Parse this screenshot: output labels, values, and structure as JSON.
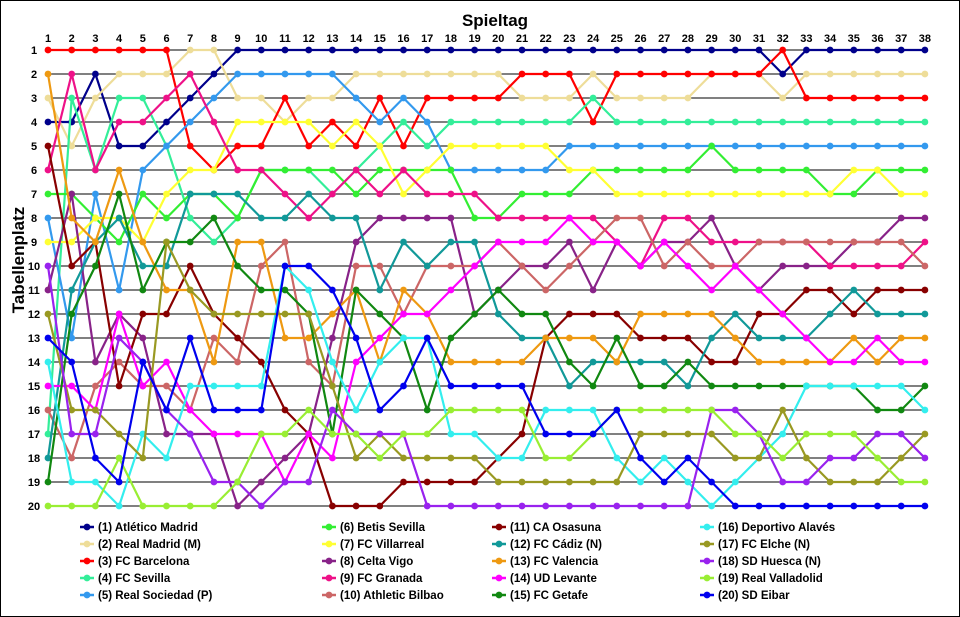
{
  "chart_data": {
    "type": "line",
    "title": "Spieltag",
    "xlabel": "Spieltag",
    "ylabel": "Tabellenplatz",
    "x": [
      1,
      2,
      3,
      4,
      5,
      6,
      7,
      8,
      9,
      10,
      11,
      12,
      13,
      14,
      15,
      16,
      17,
      18,
      19,
      20,
      21,
      22,
      23,
      24,
      25,
      26,
      27,
      28,
      29,
      30,
      31,
      32,
      33,
      34,
      35,
      36,
      37,
      38
    ],
    "ylim": [
      1,
      20
    ],
    "y_inverted": true,
    "grid": "horizontal",
    "legend_position": "bottom",
    "series": [
      {
        "name": "(1) Atlético Madrid",
        "color": "#00008b",
        "values": [
          4,
          4,
          2,
          5,
          5,
          4,
          3,
          2,
          1,
          1,
          1,
          1,
          1,
          1,
          1,
          1,
          1,
          1,
          1,
          1,
          1,
          1,
          1,
          1,
          1,
          1,
          1,
          1,
          1,
          1,
          1,
          2,
          1,
          1,
          1,
          1,
          1,
          1
        ]
      },
      {
        "name": "(2) Real Madrid (M)",
        "color": "#eedd99",
        "values": [
          3,
          5,
          3,
          2,
          2,
          2,
          1,
          1,
          3,
          3,
          4,
          3,
          3,
          2,
          2,
          2,
          2,
          2,
          2,
          2,
          3,
          3,
          3,
          2,
          3,
          3,
          3,
          3,
          2,
          2,
          2,
          3,
          2,
          2,
          2,
          2,
          2,
          2
        ]
      },
      {
        "name": "(3) FC Barcelona",
        "color": "#ff0000",
        "values": [
          1,
          1,
          1,
          1,
          1,
          1,
          5,
          6,
          5,
          5,
          3,
          5,
          4,
          5,
          3,
          5,
          3,
          3,
          3,
          3,
          2,
          2,
          2,
          4,
          2,
          2,
          2,
          2,
          2,
          2,
          2,
          1,
          3,
          3,
          3,
          3,
          3,
          3
        ]
      },
      {
        "name": "(4) FC Sevilla",
        "color": "#33ee99",
        "values": [
          17,
          3,
          6,
          3,
          3,
          5,
          8,
          9,
          8,
          6,
          6,
          6,
          7,
          6,
          5,
          4,
          5,
          4,
          4,
          4,
          4,
          4,
          4,
          3,
          4,
          4,
          4,
          4,
          4,
          4,
          4,
          4,
          4,
          4,
          4,
          4,
          4,
          4
        ]
      },
      {
        "name": "(5) Real Sociedad (P)",
        "color": "#3399ee",
        "values": [
          8,
          13,
          7,
          11,
          6,
          5,
          4,
          3,
          2,
          2,
          2,
          2,
          2,
          3,
          4,
          3,
          4,
          6,
          6,
          6,
          6,
          6,
          5,
          5,
          5,
          5,
          5,
          5,
          5,
          5,
          5,
          5,
          5,
          5,
          5,
          5,
          5,
          5
        ]
      },
      {
        "name": "(6) Betis Sevilla",
        "color": "#33ee33",
        "values": [
          7,
          7,
          8,
          9,
          7,
          8,
          7,
          7,
          8,
          6,
          6,
          6,
          6,
          7,
          6,
          6,
          6,
          6,
          8,
          8,
          7,
          7,
          7,
          6,
          6,
          6,
          6,
          6,
          5,
          6,
          6,
          6,
          6,
          7,
          7,
          6,
          6,
          6
        ]
      },
      {
        "name": "(7) FC Villarreal",
        "color": "#ffff33",
        "values": [
          9,
          9,
          8,
          8,
          9,
          7,
          6,
          6,
          4,
          4,
          4,
          4,
          5,
          4,
          5,
          7,
          6,
          5,
          5,
          5,
          5,
          5,
          6,
          6,
          7,
          7,
          7,
          7,
          7,
          7,
          7,
          7,
          7,
          7,
          6,
          6,
          7,
          7
        ]
      },
      {
        "name": "(8) Celta Vigo",
        "color": "#882288",
        "values": [
          11,
          7,
          14,
          12,
          13,
          17,
          17,
          17,
          20,
          19,
          18,
          17,
          13,
          9,
          8,
          8,
          8,
          8,
          12,
          11,
          10,
          10,
          9,
          11,
          9,
          10,
          9,
          9,
          8,
          10,
          11,
          10,
          10,
          10,
          9,
          9,
          8,
          8
        ]
      },
      {
        "name": "(9) FC Granada",
        "color": "#ee1188",
        "values": [
          6,
          2,
          6,
          4,
          4,
          3,
          2,
          4,
          6,
          6,
          7,
          8,
          7,
          6,
          7,
          6,
          7,
          7,
          7,
          8,
          8,
          8,
          8,
          8,
          9,
          10,
          8,
          8,
          9,
          9,
          9,
          9,
          9,
          10,
          10,
          10,
          10,
          9
        ]
      },
      {
        "name": "(10) Athletic Bilbao",
        "color": "#cc6666",
        "values": [
          16,
          18,
          15,
          14,
          15,
          15,
          16,
          13,
          14,
          10,
          9,
          14,
          15,
          10,
          10,
          12,
          10,
          10,
          10,
          9,
          10,
          11,
          10,
          9,
          8,
          8,
          10,
          9,
          10,
          10,
          9,
          9,
          9,
          9,
          9,
          9,
          9,
          10
        ]
      },
      {
        "name": "(11) CA Osasuna",
        "color": "#880000",
        "values": [
          5,
          10,
          9,
          15,
          12,
          12,
          10,
          12,
          13,
          14,
          16,
          17,
          20,
          20,
          20,
          19,
          19,
          19,
          19,
          18,
          17,
          13,
          12,
          12,
          12,
          13,
          13,
          13,
          14,
          14,
          12,
          12,
          11,
          11,
          12,
          11,
          11,
          11
        ]
      },
      {
        "name": "(12) FC Cádiz (N)",
        "color": "#119999",
        "values": [
          18,
          11,
          9,
          8,
          10,
          10,
          7,
          7,
          7,
          8,
          8,
          7,
          8,
          8,
          11,
          9,
          10,
          9,
          9,
          12,
          13,
          13,
          15,
          14,
          14,
          14,
          14,
          15,
          13,
          12,
          13,
          13,
          13,
          12,
          11,
          12,
          12,
          12
        ]
      },
      {
        "name": "(13) FC Valencia",
        "color": "#ee9911",
        "values": [
          2,
          8,
          9,
          6,
          9,
          11,
          11,
          14,
          9,
          9,
          13,
          13,
          12,
          11,
          14,
          11,
          12,
          14,
          14,
          14,
          14,
          13,
          13,
          13,
          14,
          12,
          12,
          12,
          12,
          13,
          14,
          14,
          14,
          14,
          13,
          14,
          13,
          13
        ]
      },
      {
        "name": "(14) UD Levante",
        "color": "#ff00ff",
        "values": [
          15,
          15,
          16,
          12,
          15,
          14,
          16,
          17,
          17,
          17,
          19,
          17,
          18,
          14,
          13,
          12,
          12,
          11,
          10,
          9,
          9,
          9,
          8,
          9,
          9,
          10,
          9,
          10,
          11,
          10,
          11,
          12,
          13,
          14,
          14,
          13,
          14,
          14
        ]
      },
      {
        "name": "(15) FC Getafe",
        "color": "#118811",
        "values": [
          19,
          12,
          10,
          7,
          11,
          9,
          9,
          8,
          10,
          11,
          11,
          12,
          17,
          11,
          12,
          13,
          16,
          13,
          12,
          11,
          12,
          12,
          14,
          15,
          13,
          15,
          15,
          14,
          15,
          15,
          15,
          15,
          15,
          15,
          15,
          16,
          16,
          15
        ]
      },
      {
        "name": "(16) Deportivo Alavés",
        "color": "#33eeee",
        "values": [
          14,
          19,
          19,
          20,
          17,
          18,
          15,
          15,
          15,
          15,
          10,
          11,
          14,
          16,
          14,
          13,
          13,
          17,
          17,
          18,
          18,
          16,
          16,
          16,
          18,
          19,
          18,
          19,
          20,
          19,
          18,
          17,
          15,
          15,
          15,
          15,
          15,
          16
        ]
      },
      {
        "name": "(17) FC Elche (N)",
        "color": "#999922",
        "values": [
          12,
          16,
          16,
          17,
          18,
          9,
          11,
          12,
          12,
          12,
          12,
          12,
          15,
          18,
          17,
          18,
          18,
          18,
          18,
          19,
          19,
          19,
          19,
          19,
          19,
          17,
          17,
          17,
          17,
          18,
          18,
          16,
          18,
          19,
          19,
          19,
          18,
          17
        ]
      },
      {
        "name": "(18) SD Huesca (N)",
        "color": "#9922ee",
        "values": [
          10,
          17,
          17,
          13,
          14,
          16,
          17,
          19,
          19,
          20,
          19,
          19,
          16,
          17,
          17,
          17,
          20,
          20,
          20,
          20,
          20,
          20,
          20,
          20,
          20,
          20,
          20,
          20,
          16,
          16,
          17,
          19,
          19,
          18,
          18,
          17,
          17,
          18
        ]
      },
      {
        "name": "(19) Real Valladolid",
        "color": "#99ee33",
        "values": [
          20,
          20,
          20,
          18,
          20,
          20,
          20,
          20,
          19,
          17,
          17,
          16,
          17,
          17,
          18,
          17,
          17,
          16,
          16,
          16,
          16,
          18,
          18,
          17,
          16,
          16,
          16,
          16,
          16,
          17,
          17,
          18,
          17,
          17,
          17,
          18,
          19,
          19
        ]
      },
      {
        "name": "(20) SD Eibar",
        "color": "#0000ee",
        "values": [
          13,
          14,
          18,
          19,
          14,
          16,
          13,
          16,
          16,
          16,
          10,
          10,
          11,
          13,
          16,
          15,
          13,
          15,
          15,
          15,
          15,
          17,
          17,
          17,
          16,
          18,
          19,
          18,
          19,
          20,
          20,
          20,
          20,
          20,
          20,
          20,
          20,
          20
        ]
      }
    ]
  }
}
